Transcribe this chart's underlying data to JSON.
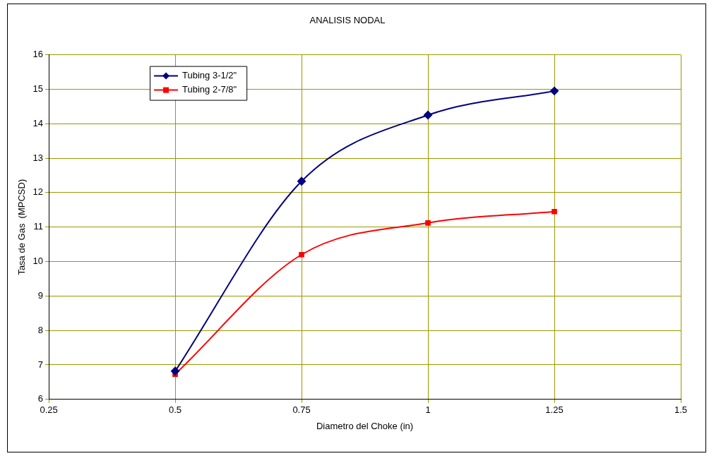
{
  "chart_data": {
    "type": "line",
    "title": "ANALISIS NODAL",
    "xlabel": "Diametro del Choke (in)",
    "ylabel": "Tasa de Gas  (MPCSD)",
    "x": [
      0.5,
      0.75,
      1,
      1.25
    ],
    "series": [
      {
        "name": "Tubing 3-1/2\"",
        "color": "#000080",
        "marker": "diamond",
        "values": [
          6.82,
          12.33,
          14.25,
          14.95
        ]
      },
      {
        "name": "Tubing 2-7/8\"",
        "color": "#ff0000",
        "marker": "square",
        "values": [
          6.73,
          10.2,
          11.12,
          11.45
        ]
      }
    ],
    "xlim": [
      0.25,
      1.5
    ],
    "xticks": [
      0.25,
      0.5,
      0.75,
      1,
      1.25,
      1.5
    ],
    "ylim": [
      6,
      16
    ],
    "yticks": [
      6,
      7,
      8,
      9,
      10,
      11,
      12,
      13,
      14,
      15,
      16
    ],
    "grid": true,
    "legend": "top left"
  }
}
